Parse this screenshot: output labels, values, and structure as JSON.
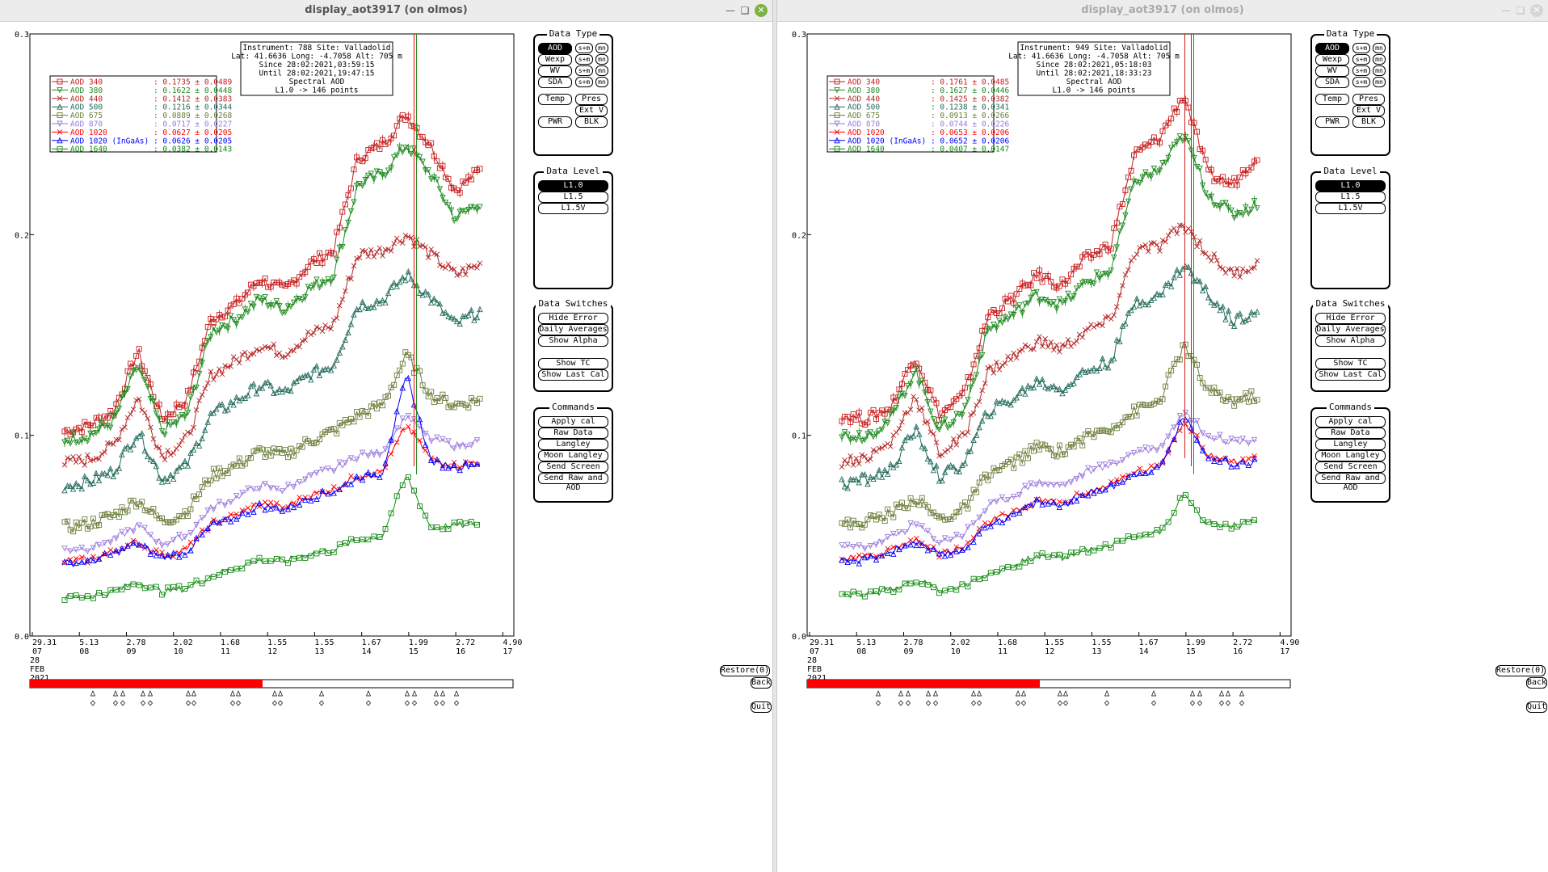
{
  "windows": [
    {
      "title": "display_aot3917 (on olmos)",
      "info": [
        "Instrument: 788 Site: Valladolid",
        "Lat: 41.6636 Long: -4.7058 Alt: 705 m",
        "Since 28:02:2021,03:59:15",
        "Until 28:02:2021,19:47:15",
        "Spectral AOD",
        "L1.0 -> 146 points"
      ],
      "legend": [
        {
          "label": "AOD 340",
          "stat": ": 0.1735 ± 0.0489",
          "color": "#c81e1e",
          "marker": "square"
        },
        {
          "label": "AOD 380",
          "stat": ": 0.1622 ± 0.0448",
          "color": "#1e8a1e",
          "marker": "tri-down"
        },
        {
          "label": "AOD 440",
          "stat": ": 0.1412 ± 0.0383",
          "color": "#b42828",
          "marker": "x"
        },
        {
          "label": "AOD 500",
          "stat": ": 0.1216 ± 0.0344",
          "color": "#236b5a",
          "marker": "tri-up"
        },
        {
          "label": "AOD 675",
          "stat": ": 0.0889 ± 0.0268",
          "color": "#6b7d3a",
          "marker": "square"
        },
        {
          "label": "AOD 870",
          "stat": ": 0.0717 ± 0.0227",
          "color": "#9b7bdc",
          "marker": "tri-down"
        },
        {
          "label": "AOD 1020",
          "stat": ": 0.0627 ± 0.0205",
          "color": "#ff0000",
          "marker": "x"
        },
        {
          "label": "AOD 1020 (InGaAs)",
          "stat": ": 0.0626 ± 0.0205",
          "color": "#0000ff",
          "marker": "tri-up"
        },
        {
          "label": "AOD 1640",
          "stat": ": 0.0382 ± 0.0143",
          "color": "#138a13",
          "marker": "square"
        }
      ]
    },
    {
      "title": "display_aot3917 (on olmos)",
      "info": [
        "Instrument: 949 Site: Valladolid",
        "Lat: 41.6636 Long: -4.7058 Alt: 705 m",
        "Since 28:02:2021,05:18:03",
        "Until 28:02:2021,18:33:23",
        "Spectral AOD",
        "L1.0 -> 146 points"
      ],
      "legend": [
        {
          "label": "AOD 340",
          "stat": ": 0.1761 ± 0.0485",
          "color": "#c81e1e",
          "marker": "square"
        },
        {
          "label": "AOD 380",
          "stat": ": 0.1627 ± 0.0446",
          "color": "#1e8a1e",
          "marker": "tri-down"
        },
        {
          "label": "AOD 440",
          "stat": ": 0.1425 ± 0.0382",
          "color": "#b42828",
          "marker": "x"
        },
        {
          "label": "AOD 500",
          "stat": ": 0.1238 ± 0.0341",
          "color": "#236b5a",
          "marker": "tri-up"
        },
        {
          "label": "AOD 675",
          "stat": ": 0.0913 ± 0.0266",
          "color": "#6b7d3a",
          "marker": "square"
        },
        {
          "label": "AOD 870",
          "stat": ": 0.0744 ± 0.0226",
          "color": "#9b7bdc",
          "marker": "tri-down"
        },
        {
          "label": "AOD 1020",
          "stat": ": 0.0653 ± 0.0206",
          "color": "#ff0000",
          "marker": "x"
        },
        {
          "label": "AOD 1020 (InGaAs)",
          "stat": ": 0.0652 ± 0.0206",
          "color": "#0000ff",
          "marker": "tri-up"
        },
        {
          "label": "AOD 1640",
          "stat": ": 0.0407 ± 0.0147",
          "color": "#138a13",
          "marker": "square"
        }
      ]
    }
  ],
  "axes": {
    "y_ticks": [
      "0.0",
      "0.1",
      "0.2",
      "0.3"
    ],
    "x_ticks": [
      {
        "top": "29.31",
        "bot": "07"
      },
      {
        "top": "5.13",
        "bot": "08"
      },
      {
        "top": "2.78",
        "bot": "09"
      },
      {
        "top": "2.02",
        "bot": "10"
      },
      {
        "top": "1.68",
        "bot": "11"
      },
      {
        "top": "1.55",
        "bot": "12"
      },
      {
        "top": "1.55",
        "bot": "13"
      },
      {
        "top": "1.67",
        "bot": "14"
      },
      {
        "top": "1.99",
        "bot": "15"
      },
      {
        "top": "2.72",
        "bot": "16"
      },
      {
        "top": "4.90",
        "bot": "17"
      }
    ],
    "date_lines": [
      "28",
      "FEB",
      "2021"
    ]
  },
  "panels": {
    "data_type": {
      "title": "Data Type",
      "rows": [
        {
          "label": "AOD",
          "sm": "s+m",
          "mn": "mn",
          "selected": true
        },
        {
          "label": "Wexp",
          "sm": "s+m",
          "mn": "mn",
          "selected": false
        },
        {
          "label": "WV",
          "sm": "s+m",
          "mn": "mn",
          "selected": false
        },
        {
          "label": "SDA",
          "sm": "s+m",
          "mn": "mn",
          "selected": false
        }
      ],
      "temp": "Temp",
      "pres": "Pres",
      "extv": "Ext V",
      "pwr": "PWR",
      "blk": "BLK"
    },
    "data_level": {
      "title": "Data Level",
      "items": [
        "L1.0",
        "L1.5",
        "L1.5V"
      ]
    },
    "data_switches": {
      "title": "Data Switches",
      "items": [
        "Hide Error Bars",
        "Daily Averages",
        "Show Alpha",
        "Show TC",
        "Show Last Cal"
      ]
    },
    "commands": {
      "title": "Commands",
      "items": [
        "Apply cal",
        "Raw Data",
        "Langley",
        "Moon Langley",
        "Send Screen",
        "Send Raw and AOD"
      ]
    }
  },
  "bottom": {
    "restore": "Restore(0)",
    "back": "Back",
    "quit": "Quit"
  },
  "chart_data": [
    {
      "type": "line",
      "x_label_hours": [
        "07",
        "08",
        "09",
        "10",
        "11",
        "12",
        "13",
        "14",
        "15",
        "16",
        "17"
      ],
      "ylim": [
        0,
        0.3
      ],
      "series": [
        {
          "name": "AOD 340",
          "values": [
            0.102,
            0.105,
            0.112,
            0.142,
            0.108,
            0.118,
            0.158,
            0.165,
            0.178,
            0.172,
            0.185,
            0.192,
            0.238,
            0.245,
            0.26,
            0.244,
            0.222,
            0.232
          ]
        },
        {
          "name": "AOD 380",
          "values": [
            0.098,
            0.1,
            0.107,
            0.135,
            0.102,
            0.11,
            0.152,
            0.158,
            0.168,
            0.163,
            0.173,
            0.18,
            0.225,
            0.23,
            0.245,
            0.23,
            0.208,
            0.216
          ]
        },
        {
          "name": "AOD 440",
          "values": [
            0.086,
            0.088,
            0.095,
            0.119,
            0.09,
            0.098,
            0.13,
            0.137,
            0.145,
            0.141,
            0.15,
            0.155,
            0.19,
            0.192,
            0.2,
            0.19,
            0.18,
            0.185
          ]
        },
        {
          "name": "AOD 500",
          "values": [
            0.075,
            0.077,
            0.082,
            0.102,
            0.078,
            0.085,
            0.11,
            0.117,
            0.125,
            0.121,
            0.13,
            0.135,
            0.165,
            0.167,
            0.18,
            0.168,
            0.155,
            0.162
          ]
        },
        {
          "name": "AOD 675",
          "values": [
            0.054,
            0.056,
            0.06,
            0.068,
            0.057,
            0.062,
            0.08,
            0.085,
            0.092,
            0.09,
            0.097,
            0.102,
            0.11,
            0.115,
            0.14,
            0.12,
            0.115,
            0.118
          ]
        },
        {
          "name": "AOD 870",
          "values": [
            0.043,
            0.044,
            0.048,
            0.055,
            0.046,
            0.05,
            0.064,
            0.069,
            0.075,
            0.073,
            0.08,
            0.083,
            0.09,
            0.092,
            0.11,
            0.098,
            0.095,
            0.097
          ]
        },
        {
          "name": "AOD 1020",
          "values": [
            0.037,
            0.038,
            0.042,
            0.047,
            0.04,
            0.043,
            0.056,
            0.06,
            0.066,
            0.064,
            0.07,
            0.073,
            0.08,
            0.082,
            0.105,
            0.088,
            0.085,
            0.087
          ]
        },
        {
          "name": "AOD 1020 (InGaAs)",
          "values": [
            0.036,
            0.037,
            0.041,
            0.046,
            0.039,
            0.042,
            0.055,
            0.059,
            0.065,
            0.063,
            0.069,
            0.072,
            0.079,
            0.081,
            0.13,
            0.087,
            0.084,
            0.086
          ]
        },
        {
          "name": "AOD 1640",
          "values": [
            0.019,
            0.02,
            0.022,
            0.027,
            0.022,
            0.024,
            0.03,
            0.034,
            0.038,
            0.037,
            0.041,
            0.043,
            0.048,
            0.05,
            0.08,
            0.054,
            0.055,
            0.056
          ]
        }
      ]
    },
    {
      "type": "line",
      "x_label_hours": [
        "07",
        "08",
        "09",
        "10",
        "11",
        "12",
        "13",
        "14",
        "15",
        "16",
        "17"
      ],
      "ylim": [
        0,
        0.3
      ],
      "series": [
        {
          "name": "AOD 340",
          "values": [
            0.11,
            0.108,
            0.114,
            0.14,
            0.11,
            0.12,
            0.16,
            0.168,
            0.18,
            0.175,
            0.188,
            0.195,
            0.24,
            0.248,
            0.27,
            0.23,
            0.225,
            0.24
          ]
        },
        {
          "name": "AOD 380",
          "values": [
            0.1,
            0.1,
            0.108,
            0.133,
            0.103,
            0.112,
            0.153,
            0.16,
            0.17,
            0.165,
            0.176,
            0.182,
            0.227,
            0.232,
            0.25,
            0.22,
            0.21,
            0.215
          ]
        },
        {
          "name": "AOD 440",
          "values": [
            0.087,
            0.089,
            0.096,
            0.12,
            0.091,
            0.099,
            0.132,
            0.139,
            0.147,
            0.143,
            0.152,
            0.157,
            0.192,
            0.194,
            0.205,
            0.19,
            0.18,
            0.186
          ]
        },
        {
          "name": "AOD 500",
          "values": [
            0.076,
            0.078,
            0.083,
            0.103,
            0.079,
            0.086,
            0.112,
            0.118,
            0.127,
            0.123,
            0.132,
            0.137,
            0.167,
            0.169,
            0.185,
            0.17,
            0.157,
            0.163
          ]
        },
        {
          "name": "AOD 675",
          "values": [
            0.055,
            0.057,
            0.061,
            0.069,
            0.058,
            0.063,
            0.081,
            0.086,
            0.094,
            0.092,
            0.099,
            0.104,
            0.112,
            0.117,
            0.145,
            0.122,
            0.117,
            0.12
          ]
        },
        {
          "name": "AOD 870",
          "values": [
            0.044,
            0.045,
            0.049,
            0.056,
            0.047,
            0.051,
            0.065,
            0.07,
            0.077,
            0.075,
            0.082,
            0.085,
            0.092,
            0.094,
            0.112,
            0.1,
            0.097,
            0.098
          ]
        },
        {
          "name": "AOD 1020",
          "values": [
            0.038,
            0.039,
            0.043,
            0.048,
            0.041,
            0.044,
            0.057,
            0.061,
            0.068,
            0.066,
            0.072,
            0.075,
            0.082,
            0.084,
            0.108,
            0.09,
            0.087,
            0.088
          ]
        },
        {
          "name": "AOD 1020 (InGaAs)",
          "values": [
            0.037,
            0.038,
            0.042,
            0.047,
            0.04,
            0.043,
            0.056,
            0.06,
            0.067,
            0.065,
            0.071,
            0.074,
            0.081,
            0.083,
            0.11,
            0.089,
            0.086,
            0.087
          ]
        },
        {
          "name": "AOD 1640",
          "values": [
            0.02,
            0.021,
            0.023,
            0.028,
            0.023,
            0.025,
            0.031,
            0.035,
            0.04,
            0.039,
            0.043,
            0.045,
            0.05,
            0.052,
            0.07,
            0.056,
            0.055,
            0.057
          ]
        }
      ]
    }
  ]
}
